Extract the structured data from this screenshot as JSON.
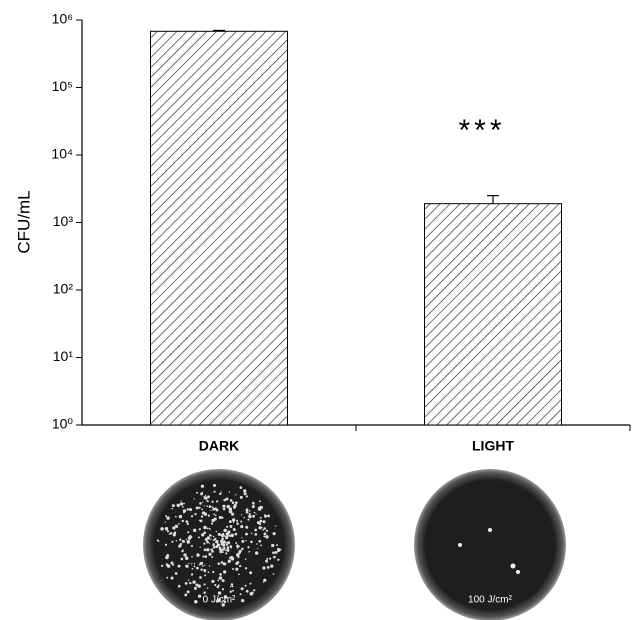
{
  "chart_data": {
    "type": "bar",
    "y_label": "CFU/mL",
    "categories": [
      "DARK",
      "LIGHT"
    ],
    "values": [
      680000,
      1900
    ],
    "errors": [
      20000,
      600
    ],
    "color": "#000000",
    "log_scale": true,
    "ylim": [
      1,
      1000000
    ],
    "yticks": [
      {
        "value": 1,
        "label": "10⁰"
      },
      {
        "value": 10,
        "label": "10¹"
      },
      {
        "value": 100,
        "label": "10²"
      },
      {
        "value": 1000,
        "label": "10³"
      },
      {
        "value": 10000,
        "label": "10⁴"
      },
      {
        "value": 100000,
        "label": "10⁵"
      },
      {
        "value": 1000000,
        "label": "10⁶"
      }
    ],
    "annotation": "***",
    "dish_labels": [
      "0 J/cm²",
      "100 J/cm²"
    ]
  }
}
